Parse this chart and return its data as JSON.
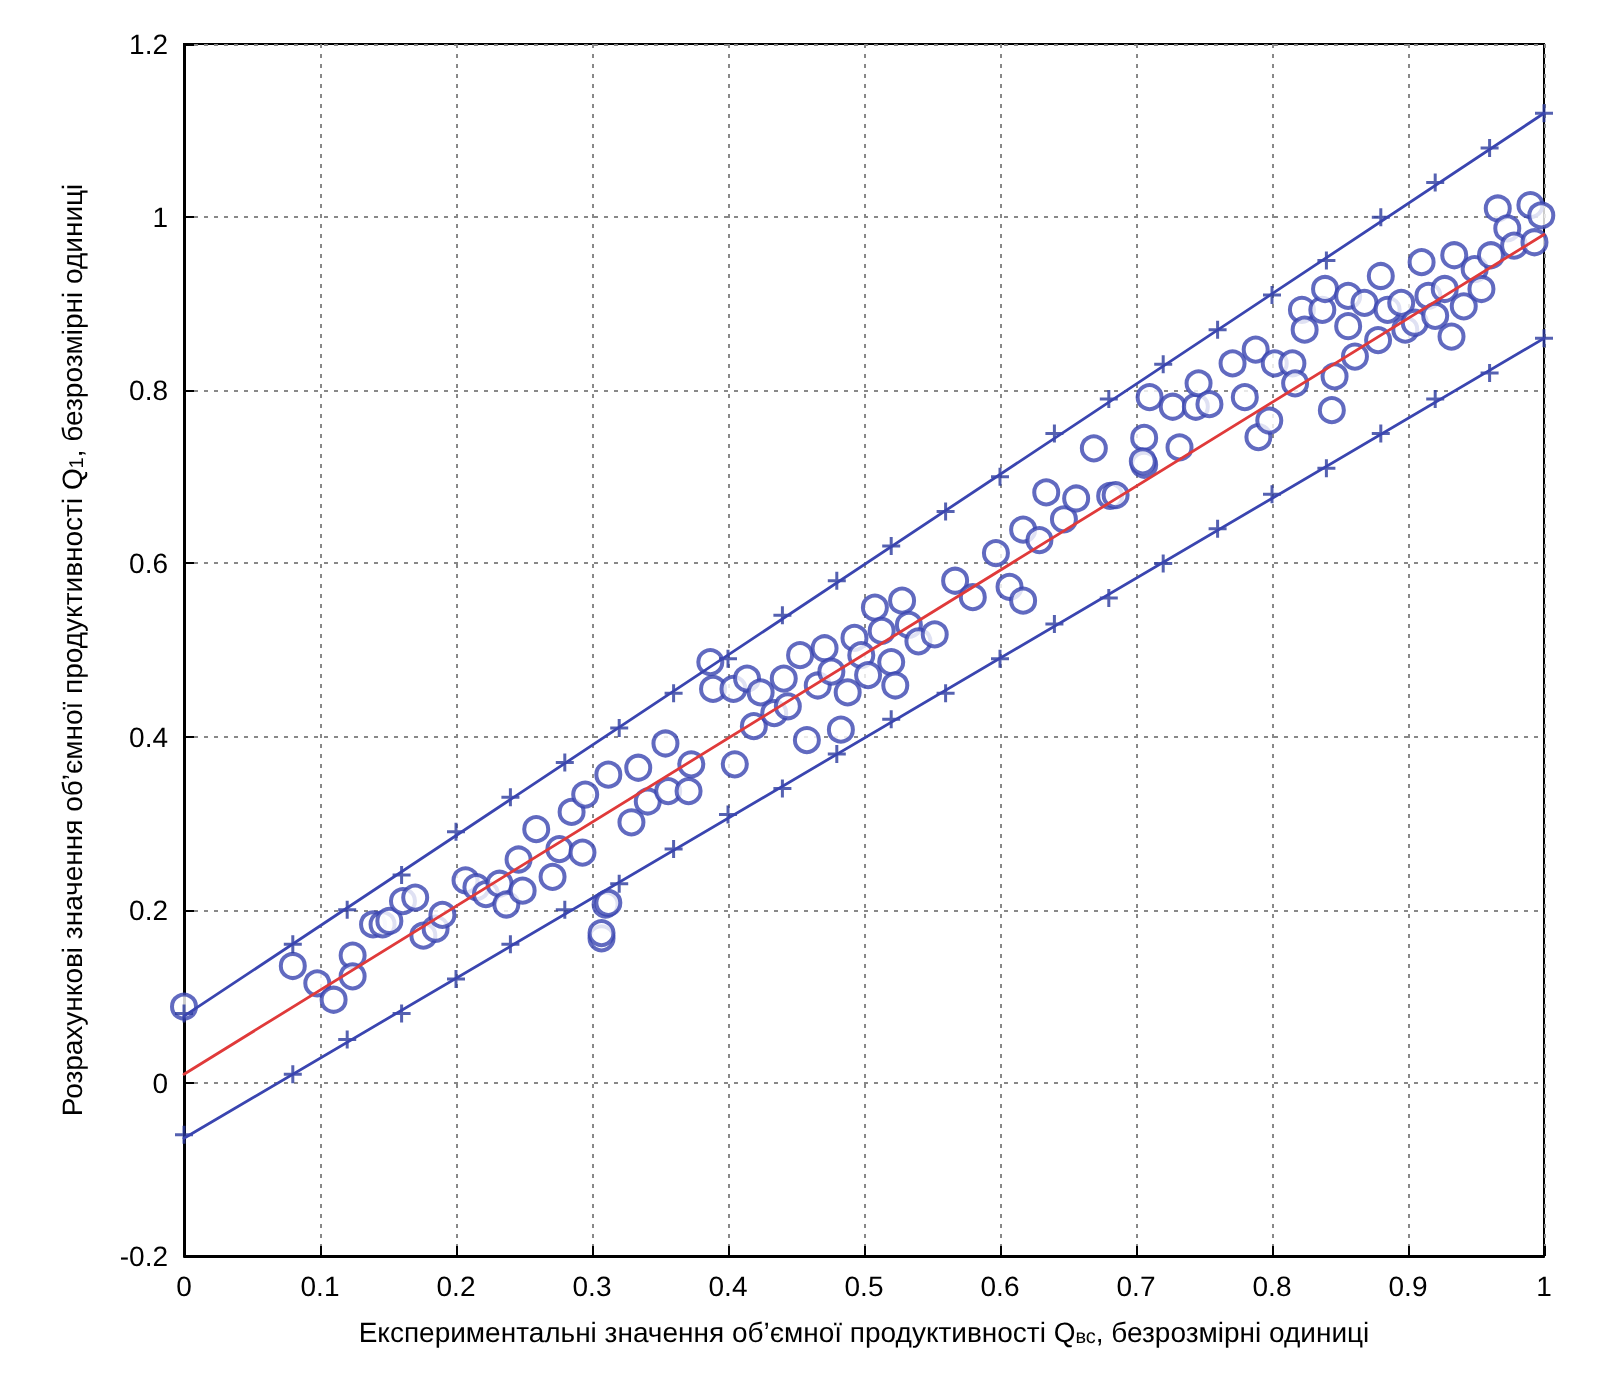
{
  "chart_data": {
    "type": "scatter",
    "xlabel": "Експериментальні значення об’ємної продуктивності Q$_{вс}$, безрозмірні одиниці",
    "ylabel": "Розрахункові значення об’ємної продуктивності Q$_{1}$, безрозмірні одиниці",
    "xlim": [
      0,
      1
    ],
    "ylim": [
      -0.2,
      1.2
    ],
    "xticks": [
      0,
      0.1,
      0.2,
      0.3,
      0.4,
      0.5,
      0.6,
      0.7,
      0.8,
      0.9,
      1
    ],
    "yticks": [
      -0.2,
      0,
      0.2,
      0.4,
      0.6,
      0.8,
      1,
      1.2
    ],
    "grid": true,
    "series": [
      {
        "marker": "circle",
        "color": "#3a45b0",
        "x": [
          0,
          0.08,
          0.098,
          0.11,
          0.124,
          0.124,
          0.139,
          0.146,
          0.151,
          0.161,
          0.17,
          0.176,
          0.185,
          0.19,
          0.207,
          0.215,
          0.222,
          0.232,
          0.237,
          0.249,
          0.246,
          0.259,
          0.271,
          0.276,
          0.285,
          0.293,
          0.295,
          0.307,
          0.31,
          0.312,
          0.329,
          0.334,
          0.341,
          0.354,
          0.356,
          0.371,
          0.373,
          0.405,
          0.312,
          0.307,
          0.387,
          0.389,
          0.404,
          0.414,
          0.419,
          0.424,
          0.434,
          0.441,
          0.444,
          0.453,
          0.458,
          0.466,
          0.471,
          0.476,
          0.483,
          0.488,
          0.493,
          0.498,
          0.503,
          0.508,
          0.513,
          0.52,
          0.523,
          0.528,
          0.533,
          0.54,
          0.552,
          0.567,
          0.58,
          0.597,
          0.607,
          0.617,
          0.617,
          0.629,
          0.634,
          0.647,
          0.656,
          0.669,
          0.681,
          0.685,
          0.706,
          0.706,
          0.705,
          0.71,
          0.732,
          0.727,
          0.744,
          0.746,
          0.754,
          0.771,
          0.78,
          0.788,
          0.79,
          0.798,
          0.802,
          0.815,
          0.817,
          0.822,
          0.824,
          0.837,
          0.839,
          0.844,
          0.846,
          0.856,
          0.856,
          0.861,
          0.868,
          0.878,
          0.88,
          0.885,
          0.895,
          0.898,
          0.905,
          0.91,
          0.915,
          0.92,
          0.927,
          0.932,
          0.934,
          0.941,
          0.949,
          0.954,
          0.961,
          0.966,
          0.973,
          0.978,
          0.99,
          0.993,
          0.998
        ],
        "values": [
          0.088,
          0.135,
          0.115,
          0.096,
          0.147,
          0.123,
          0.183,
          0.183,
          0.187,
          0.21,
          0.214,
          0.17,
          0.178,
          0.194,
          0.234,
          0.226,
          0.218,
          0.23,
          0.206,
          0.222,
          0.258,
          0.293,
          0.238,
          0.27,
          0.313,
          0.266,
          0.333,
          0.167,
          0.206,
          0.356,
          0.301,
          0.364,
          0.325,
          0.392,
          0.337,
          0.337,
          0.368,
          0.368,
          0.208,
          0.173,
          0.486,
          0.455,
          0.455,
          0.467,
          0.412,
          0.451,
          0.427,
          0.467,
          0.435,
          0.494,
          0.396,
          0.459,
          0.502,
          0.475,
          0.408,
          0.451,
          0.514,
          0.494,
          0.471,
          0.549,
          0.522,
          0.486,
          0.459,
          0.557,
          0.529,
          0.51,
          0.518,
          0.58,
          0.561,
          0.612,
          0.573,
          0.557,
          0.639,
          0.627,
          0.682,
          0.651,
          0.675,
          0.733,
          0.678,
          0.679,
          0.745,
          0.714,
          0.718,
          0.792,
          0.734,
          0.781,
          0.781,
          0.808,
          0.784,
          0.831,
          0.792,
          0.847,
          0.746,
          0.765,
          0.831,
          0.831,
          0.808,
          0.893,
          0.87,
          0.893,
          0.917,
          0.777,
          0.816,
          0.909,
          0.874,
          0.839,
          0.901,
          0.858,
          0.932,
          0.893,
          0.901,
          0.87,
          0.878,
          0.948,
          0.909,
          0.886,
          0.917,
          0.862,
          0.956,
          0.897,
          0.94,
          0.917,
          0.956,
          1.01,
          0.987,
          0.967,
          1.014,
          0.971,
          1.002
        ]
      },
      {
        "type": "line",
        "marker": "none",
        "line_style": "solid",
        "color": "#e03a3a",
        "x": [
          0,
          1
        ],
        "values": [
          0.01,
          0.98
        ]
      },
      {
        "type": "line",
        "marker": "none",
        "line_style": "solid",
        "color": "#3a45b0",
        "x": [
          0,
          1
        ],
        "values": [
          0.077,
          1.12
        ]
      },
      {
        "type": "line",
        "marker": "none",
        "line_style": "solid",
        "color": "#3a45b0",
        "x": [
          0,
          1
        ],
        "values": [
          -0.064,
          0.86
        ]
      },
      {
        "type": "scatter",
        "marker": "cross",
        "color": "#2a3a9e",
        "x": [
          0,
          0.08,
          0.12,
          0.16,
          0.2,
          0.24,
          0.28,
          0.32,
          0.36,
          0.4,
          0.44,
          0.48,
          0.52,
          0.56,
          0.6,
          0.64,
          0.68,
          0.72,
          0.76,
          0.8,
          0.84,
          0.88,
          0.92,
          0.96,
          1
        ],
        "values": [
          0.08,
          0.16,
          0.2,
          0.24,
          0.29,
          0.33,
          0.37,
          0.41,
          0.45,
          0.49,
          0.54,
          0.58,
          0.62,
          0.66,
          0.7,
          0.75,
          0.79,
          0.83,
          0.87,
          0.91,
          0.95,
          1,
          1.04,
          1.08,
          1.12
        ]
      },
      {
        "type": "scatter",
        "marker": "cross",
        "color": "#2a3a9e",
        "x": [
          0,
          0.08,
          0.12,
          0.16,
          0.2,
          0.24,
          0.28,
          0.32,
          0.36,
          0.4,
          0.44,
          0.48,
          0.52,
          0.56,
          0.6,
          0.64,
          0.68,
          0.72,
          0.76,
          0.8,
          0.84,
          0.88,
          0.92,
          0.96,
          1
        ],
        "values": [
          -0.06,
          0.01,
          0.05,
          0.08,
          0.12,
          0.16,
          0.2,
          0.23,
          0.27,
          0.31,
          0.34,
          0.38,
          0.42,
          0.45,
          0.49,
          0.53,
          0.56,
          0.6,
          0.64,
          0.68,
          0.71,
          0.75,
          0.79,
          0.82,
          0.86
        ]
      }
    ]
  }
}
